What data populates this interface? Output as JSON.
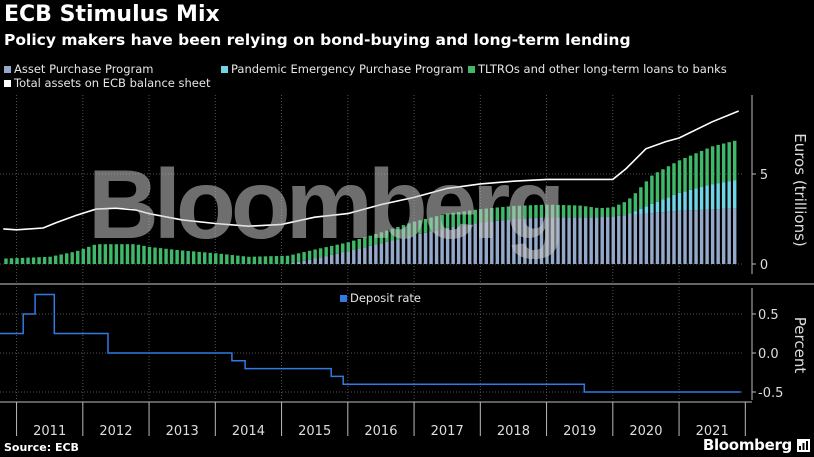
{
  "header": {
    "title": "ECB Stimulus Mix",
    "subtitle": "Policy makers have been relying on bond-buying and long-term lending"
  },
  "legend": {
    "app": "Asset Purchase Program",
    "pepp": "Pandemic Emergency Purchase Program",
    "tltro": "TLTROs and other long-term loans to banks",
    "total": "Total assets on ECB balance sheet",
    "deposit": "Deposit rate"
  },
  "colors": {
    "app": "#94a8c9",
    "pepp": "#6fd4e6",
    "tltro": "#3fb86a",
    "total": "#ffffff",
    "deposit": "#2f7be0",
    "grid": "#555555"
  },
  "footer": {
    "source": "Source: ECB",
    "brand": "Bloomberg"
  },
  "watermark": "Bloomberg",
  "chart_data": [
    {
      "type": "bar",
      "stacked": true,
      "ylabel": "Euros (trillions)",
      "ylim": [
        -0.3,
        9.3
      ],
      "yticks": [
        0,
        5
      ],
      "xlabel": "",
      "x_range": [
        2010.75,
        2021.95
      ],
      "series": [
        {
          "name": "Asset Purchase Program",
          "key": "app",
          "points": [
            [
              2010.8,
              0
            ],
            [
              2015.1,
              0
            ],
            [
              2015.5,
              0.3
            ],
            [
              2016.0,
              0.7
            ],
            [
              2016.5,
              1.15
            ],
            [
              2017.0,
              1.6
            ],
            [
              2017.5,
              2.0
            ],
            [
              2018.0,
              2.3
            ],
            [
              2018.5,
              2.5
            ],
            [
              2019.0,
              2.6
            ],
            [
              2019.8,
              2.6
            ],
            [
              2020.0,
              2.65
            ],
            [
              2020.5,
              2.8
            ],
            [
              2021.0,
              2.95
            ],
            [
              2021.9,
              3.1
            ]
          ]
        },
        {
          "name": "Pandemic Emergency Purchase Program",
          "key": "pepp",
          "points": [
            [
              2010.8,
              0
            ],
            [
              2020.2,
              0
            ],
            [
              2020.5,
              0.4
            ],
            [
              2021.0,
              1.0
            ],
            [
              2021.5,
              1.4
            ],
            [
              2021.9,
              1.6
            ]
          ]
        },
        {
          "name": "TLTROs and other long-term loans to banks",
          "key": "tltro",
          "points": [
            [
              2010.8,
              0.3
            ],
            [
              2011.5,
              0.4
            ],
            [
              2011.9,
              0.7
            ],
            [
              2012.2,
              1.1
            ],
            [
              2012.8,
              1.1
            ],
            [
              2013.0,
              0.95
            ],
            [
              2013.5,
              0.75
            ],
            [
              2014.0,
              0.6
            ],
            [
              2014.5,
              0.4
            ],
            [
              2015.0,
              0.45
            ],
            [
              2015.5,
              0.5
            ],
            [
              2016.0,
              0.5
            ],
            [
              2016.5,
              0.6
            ],
            [
              2017.0,
              0.75
            ],
            [
              2017.5,
              0.8
            ],
            [
              2018.0,
              0.75
            ],
            [
              2019.0,
              0.7
            ],
            [
              2019.5,
              0.65
            ],
            [
              2019.8,
              0.5
            ],
            [
              2020.0,
              0.5
            ],
            [
              2020.3,
              0.9
            ],
            [
              2020.6,
              1.6
            ],
            [
              2021.0,
              1.8
            ],
            [
              2021.5,
              2.1
            ],
            [
              2021.9,
              2.2
            ]
          ]
        }
      ]
    },
    {
      "type": "line",
      "name": "Total assets on ECB balance sheet",
      "key": "total",
      "points": [
        [
          2010.8,
          1.95
        ],
        [
          2011.0,
          1.9
        ],
        [
          2011.4,
          2.0
        ],
        [
          2011.6,
          2.3
        ],
        [
          2011.9,
          2.7
        ],
        [
          2012.2,
          3.05
        ],
        [
          2012.5,
          3.1
        ],
        [
          2012.8,
          3.0
        ],
        [
          2013.0,
          2.8
        ],
        [
          2013.5,
          2.45
        ],
        [
          2014.0,
          2.25
        ],
        [
          2014.5,
          2.1
        ],
        [
          2015.0,
          2.2
        ],
        [
          2015.5,
          2.6
        ],
        [
          2016.0,
          2.8
        ],
        [
          2016.5,
          3.3
        ],
        [
          2017.0,
          3.7
        ],
        [
          2017.5,
          4.2
        ],
        [
          2018.0,
          4.45
        ],
        [
          2018.5,
          4.6
        ],
        [
          2019.0,
          4.7
        ],
        [
          2019.5,
          4.7
        ],
        [
          2019.8,
          4.7
        ],
        [
          2020.0,
          4.7
        ],
        [
          2020.2,
          5.3
        ],
        [
          2020.5,
          6.4
        ],
        [
          2020.8,
          6.8
        ],
        [
          2021.0,
          7.0
        ],
        [
          2021.5,
          7.9
        ],
        [
          2021.9,
          8.5
        ]
      ]
    },
    {
      "type": "line",
      "name": "Deposit rate",
      "key": "deposit",
      "ylabel": "Percent",
      "ylim": [
        -0.68,
        0.86
      ],
      "yticks": [
        -0.5,
        0.0,
        0.5
      ],
      "tick_labels": [
        "-0.5",
        "0.0",
        "0.5"
      ],
      "points": [
        [
          2010.75,
          0.25
        ],
        [
          2011.1,
          0.25
        ],
        [
          2011.1,
          0.5
        ],
        [
          2011.28,
          0.5
        ],
        [
          2011.28,
          0.75
        ],
        [
          2011.57,
          0.75
        ],
        [
          2011.57,
          0.25
        ],
        [
          2012.38,
          0.25
        ],
        [
          2012.38,
          0.0
        ],
        [
          2014.25,
          0.0
        ],
        [
          2014.25,
          -0.1
        ],
        [
          2014.45,
          -0.1
        ],
        [
          2014.45,
          -0.2
        ],
        [
          2015.75,
          -0.2
        ],
        [
          2015.75,
          -0.3
        ],
        [
          2015.93,
          -0.3
        ],
        [
          2015.93,
          -0.4
        ],
        [
          2019.57,
          -0.4
        ],
        [
          2019.57,
          -0.5
        ],
        [
          2021.93,
          -0.5
        ]
      ]
    },
    {
      "type": "axis",
      "x_tick_labels": [
        "2011",
        "2012",
        "2013",
        "2014",
        "2015",
        "2016",
        "2017",
        "2018",
        "2019",
        "2020",
        "2021"
      ]
    }
  ]
}
